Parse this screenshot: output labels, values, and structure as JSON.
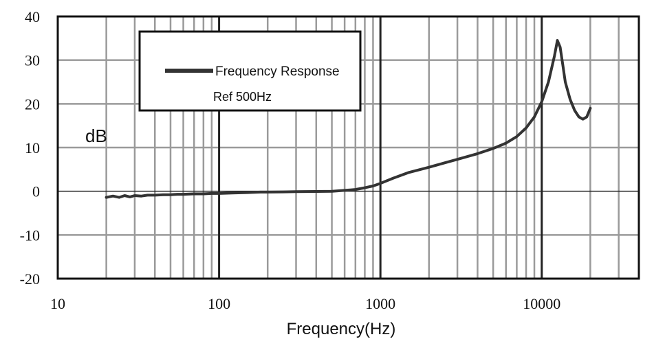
{
  "chart_data": {
    "type": "line",
    "xscale": "log",
    "xlim": [
      10,
      40000
    ],
    "ylim": [
      -20,
      40
    ],
    "xlabel": "Frequency(Hz)",
    "unit_label": "dB",
    "x_ticks": [
      10,
      100,
      1000,
      10000
    ],
    "x_tick_labels": [
      "10",
      "100",
      "1000",
      "10000"
    ],
    "y_ticks": [
      -20,
      -10,
      0,
      10,
      20,
      30,
      40
    ],
    "y_tick_labels": [
      "-20",
      "-10",
      "0",
      "10",
      "20",
      "30",
      "40"
    ],
    "grid": true,
    "legend": {
      "position": "top-left",
      "label": "Frequency Response",
      "note": "Ref 500Hz"
    },
    "line_color": "#333333",
    "series": [
      {
        "name": "Frequency Response",
        "x": [
          20,
          22,
          24,
          26,
          28,
          30,
          33,
          36,
          40,
          45,
          50,
          55,
          60,
          70,
          80,
          90,
          100,
          120,
          150,
          180,
          200,
          250,
          300,
          400,
          500,
          600,
          700,
          800,
          900,
          1000,
          1200,
          1500,
          2000,
          2500,
          3000,
          4000,
          5000,
          6000,
          7000,
          8000,
          9000,
          10000,
          11000,
          12000,
          12500,
          13000,
          13500,
          14000,
          15000,
          16000,
          17000,
          18000,
          19000,
          20000
        ],
        "y": [
          -1.4,
          -1.1,
          -1.4,
          -1.0,
          -1.3,
          -1.0,
          -1.1,
          -0.9,
          -0.9,
          -0.8,
          -0.8,
          -0.7,
          -0.7,
          -0.6,
          -0.6,
          -0.5,
          -0.5,
          -0.4,
          -0.3,
          -0.2,
          -0.2,
          -0.15,
          -0.1,
          -0.05,
          0.0,
          0.2,
          0.4,
          0.8,
          1.2,
          1.8,
          3.0,
          4.3,
          5.5,
          6.5,
          7.3,
          8.6,
          9.8,
          11.0,
          12.5,
          14.5,
          17.0,
          20.5,
          25.0,
          31.0,
          34.5,
          33.0,
          29.0,
          25.0,
          21.0,
          18.5,
          17.0,
          16.5,
          17.0,
          19.0
        ]
      }
    ]
  }
}
